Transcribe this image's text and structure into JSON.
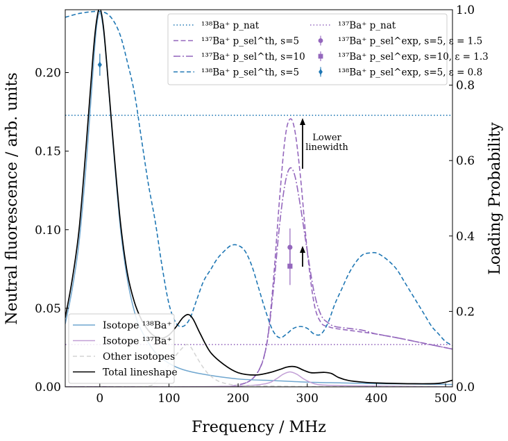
{
  "chart_data": {
    "type": "line",
    "xlabel": "Frequency / MHz",
    "ylabel_left": "Neutral fluorescence / arb. units",
    "ylabel_right": "Loading Probability",
    "xlim": [
      -50,
      510
    ],
    "ylim_left": [
      0,
      0.24
    ],
    "ylim_right": [
      0,
      1.0
    ],
    "x_ticks": [
      0,
      100,
      200,
      300,
      400,
      500
    ],
    "x_tick_labels": [
      "0",
      "100",
      "200",
      "300",
      "400",
      "500"
    ],
    "y_left_ticks": [
      0,
      0.05,
      0.1,
      0.15,
      0.2
    ],
    "y_left_tick_labels": [
      "0.00",
      "0.05",
      "0.10",
      "0.15",
      "0.20"
    ],
    "y_right_ticks": [
      0,
      0.2,
      0.4,
      0.6,
      0.8,
      1.0
    ],
    "y_right_tick_labels": [
      "0.0",
      "0.2",
      "0.4",
      "0.6",
      "0.8",
      "1.0"
    ],
    "colors": {
      "ba138_light": "#6fa6cf",
      "ba137_light": "#c29fd6",
      "other_iso": "#d4d4d4",
      "total": "#000000",
      "ba138": "#1f77b4",
      "ba137": "#9467bd"
    },
    "left_series": [
      {
        "name": "Isotope ¹³⁸Ba⁺",
        "color": "#6fa6cf",
        "dash": "",
        "x": [
          -50,
          -40,
          -30,
          -20,
          -10,
          -5,
          0,
          5,
          10,
          20,
          30,
          40,
          50,
          60,
          80,
          100,
          120,
          150,
          200,
          250,
          300,
          350,
          400,
          450,
          510
        ],
        "y": [
          0.04,
          0.062,
          0.092,
          0.14,
          0.2,
          0.228,
          0.238,
          0.228,
          0.205,
          0.15,
          0.1,
          0.068,
          0.048,
          0.036,
          0.022,
          0.015,
          0.011,
          0.008,
          0.005,
          0.004,
          0.003,
          0.0025,
          0.002,
          0.0018,
          0.0015
        ]
      },
      {
        "name": "Isotope ¹³⁷Ba⁺",
        "color": "#c29fd6",
        "dash": "",
        "x": [
          -50,
          100,
          200,
          240,
          255,
          265,
          275,
          285,
          295,
          310,
          330,
          400,
          510
        ],
        "y": [
          0.0,
          0.0,
          0.0005,
          0.002,
          0.005,
          0.008,
          0.0095,
          0.008,
          0.005,
          0.002,
          0.001,
          0.0005,
          0.0
        ]
      },
      {
        "name": "Other isotopes",
        "color": "#d4d4d4",
        "dash": "6,4",
        "x": [
          -50,
          60,
          80,
          90,
          100,
          110,
          120,
          126,
          132,
          140,
          150,
          160,
          175,
          200,
          250,
          300,
          400,
          510
        ],
        "y": [
          0.0,
          0.0,
          0.003,
          0.008,
          0.014,
          0.02,
          0.025,
          0.027,
          0.025,
          0.019,
          0.012,
          0.007,
          0.003,
          0.001,
          0.0005,
          0.0002,
          0.0001,
          0.0
        ]
      },
      {
        "name": "Total lineshape",
        "color": "#000000",
        "dash": "",
        "x": [
          -50,
          -40,
          -30,
          -20,
          -10,
          -5,
          0,
          5,
          10,
          20,
          30,
          40,
          50,
          60,
          70,
          80,
          90,
          100,
          110,
          120,
          128,
          135,
          145,
          160,
          180,
          200,
          225,
          245,
          260,
          270,
          278,
          285,
          295,
          305,
          315,
          325,
          335,
          345,
          360,
          380,
          400,
          450,
          490,
          510
        ],
        "y": [
          0.044,
          0.068,
          0.1,
          0.152,
          0.21,
          0.232,
          0.241,
          0.23,
          0.206,
          0.152,
          0.104,
          0.072,
          0.054,
          0.043,
          0.036,
          0.032,
          0.031,
          0.033,
          0.038,
          0.044,
          0.046,
          0.043,
          0.034,
          0.022,
          0.014,
          0.009,
          0.0075,
          0.009,
          0.011,
          0.0125,
          0.013,
          0.0125,
          0.0105,
          0.009,
          0.009,
          0.0092,
          0.0085,
          0.006,
          0.004,
          0.003,
          0.0025,
          0.002,
          0.0022,
          0.0042
        ]
      }
    ],
    "right_series": [
      {
        "name": "¹³⁸Ba⁺ p_nat",
        "color": "#1f77b4",
        "dash": "1.5,3",
        "x": [
          -50,
          510
        ],
        "y": [
          0.72,
          0.72
        ]
      },
      {
        "name": "¹³⁷Ba⁺ p_nat",
        "color": "#9467bd",
        "dash": "1.5,3",
        "x": [
          -50,
          510
        ],
        "y": [
          0.112,
          0.112
        ]
      },
      {
        "name": "¹³⁷Ba⁺ p_sel^th, s=5",
        "color": "#9467bd",
        "dash": "7,3.5",
        "x": [
          -50,
          150,
          200,
          225,
          240,
          250,
          260,
          268,
          275,
          282,
          290,
          300,
          310,
          320,
          330,
          340,
          360,
          380,
          400,
          430,
          470,
          510
        ],
        "y": [
          0.0,
          0.0,
          0.005,
          0.03,
          0.1,
          0.26,
          0.5,
          0.66,
          0.71,
          0.68,
          0.56,
          0.36,
          0.22,
          0.17,
          0.16,
          0.155,
          0.15,
          0.145,
          0.14,
          0.13,
          0.115,
          0.1
        ]
      },
      {
        "name": "¹³⁷Ba⁺ p_sel^th, s=10",
        "color": "#9467bd",
        "dash": "10,3,2,3",
        "x": [
          -50,
          150,
          200,
          225,
          240,
          250,
          260,
          268,
          275,
          282,
          290,
          300,
          310,
          320,
          330,
          340,
          360,
          380,
          400,
          430,
          470,
          510
        ],
        "y": [
          0.0,
          0.0,
          0.005,
          0.03,
          0.1,
          0.24,
          0.43,
          0.54,
          0.58,
          0.56,
          0.48,
          0.36,
          0.25,
          0.19,
          0.17,
          0.16,
          0.155,
          0.15,
          0.14,
          0.13,
          0.115,
          0.1
        ]
      },
      {
        "name": "¹³⁸Ba⁺ p_sel^th, s=5",
        "color": "#1f77b4",
        "dash": "6,3.5",
        "x": [
          -50,
          -30,
          -10,
          0,
          10,
          20,
          30,
          40,
          50,
          60,
          70,
          80,
          90,
          100,
          110,
          120,
          130,
          140,
          150,
          160,
          170,
          180,
          190,
          200,
          210,
          220,
          230,
          240,
          250,
          260,
          270,
          280,
          290,
          300,
          310,
          320,
          330,
          340,
          350,
          360,
          370,
          380,
          390,
          400,
          410,
          420,
          430,
          440,
          450,
          460,
          470,
          480,
          490,
          500,
          510
        ],
        "y": [
          0.98,
          0.99,
          0.995,
          0.995,
          0.99,
          0.97,
          0.93,
          0.86,
          0.78,
          0.66,
          0.54,
          0.44,
          0.32,
          0.22,
          0.17,
          0.16,
          0.18,
          0.23,
          0.28,
          0.31,
          0.34,
          0.36,
          0.375,
          0.375,
          0.36,
          0.32,
          0.26,
          0.2,
          0.15,
          0.13,
          0.14,
          0.155,
          0.16,
          0.155,
          0.14,
          0.14,
          0.17,
          0.22,
          0.26,
          0.3,
          0.33,
          0.35,
          0.355,
          0.355,
          0.345,
          0.33,
          0.31,
          0.28,
          0.25,
          0.22,
          0.19,
          0.16,
          0.14,
          0.12,
          0.11
        ]
      }
    ],
    "errorbar_series": [
      {
        "name": "¹³⁷Ba⁺ p_sel^exp, s=5, ε = 1.5",
        "color": "#9467bd",
        "marker": "circle",
        "x": 275,
        "y": 0.37,
        "yerr": 0.05
      },
      {
        "name": "¹³⁷Ba⁺ p_sel^exp, s=10, ε = 1.3",
        "color": "#9467bd",
        "marker": "square",
        "x": 275,
        "y": 0.32,
        "yerr": 0.05
      },
      {
        "name": "¹³⁸Ba⁺ p_sel^exp, s=5, ε = 0.8",
        "color": "#1f77b4",
        "marker": "diamond",
        "x": 0,
        "y": 0.205,
        "yerr": 0.007,
        "axis": "left"
      }
    ],
    "annotation": {
      "line1": "Lower",
      "line2": "linewidth"
    },
    "legend_right_placement": "top-right",
    "legend_left_placement": "lower-left",
    "grid": false
  }
}
